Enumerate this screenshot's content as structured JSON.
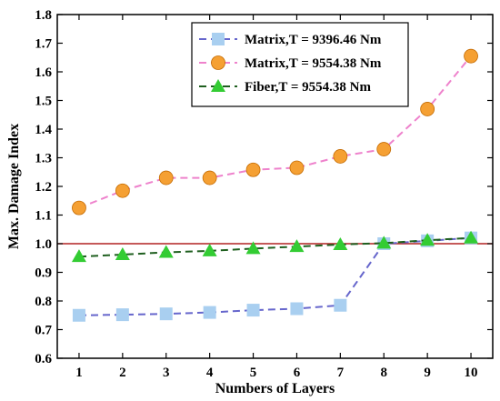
{
  "chart_data": {
    "type": "line",
    "title": "",
    "xlabel": "Numbers of Layers",
    "ylabel": "Max. Damage Index",
    "x": [
      1,
      2,
      3,
      4,
      5,
      6,
      7,
      8,
      9,
      10
    ],
    "xlim": [
      0.5,
      10.5
    ],
    "ylim": [
      0.6,
      1.8
    ],
    "xticks": [
      "1",
      "2",
      "3",
      "4",
      "5",
      "6",
      "7",
      "8",
      "9",
      "10"
    ],
    "yticks": [
      "0.6",
      "0.7",
      "0.8",
      "0.9",
      "1.0",
      "1.1",
      "1.2",
      "1.3",
      "1.4",
      "1.5",
      "1.6",
      "1.7",
      "1.8"
    ],
    "grid": false,
    "legend_position": "top-right",
    "reference_lines": [
      {
        "y": 1.0,
        "color": "#b22222"
      }
    ],
    "series": [
      {
        "name": "Matrix,T = 9396.46 Nm",
        "values": [
          0.75,
          0.752,
          0.755,
          0.76,
          0.768,
          0.773,
          0.785,
          1.0,
          1.01,
          1.02
        ],
        "line_color": "#6666cc",
        "marker": "square",
        "marker_color": "#a9cff0"
      },
      {
        "name": "Matrix,T = 9554.38 Nm",
        "values": [
          1.125,
          1.185,
          1.23,
          1.23,
          1.258,
          1.265,
          1.305,
          1.33,
          1.47,
          1.655
        ],
        "line_color": "#ee82cc",
        "marker": "circle",
        "marker_color": "#f5a033"
      },
      {
        "name": "Fiber,T = 9554.38 Nm",
        "values": [
          0.955,
          0.962,
          0.97,
          0.975,
          0.983,
          0.99,
          0.997,
          1.002,
          1.012,
          1.02
        ],
        "line_color": "#1f5f1f",
        "marker": "triangle",
        "marker_color": "#33cc33"
      }
    ]
  }
}
